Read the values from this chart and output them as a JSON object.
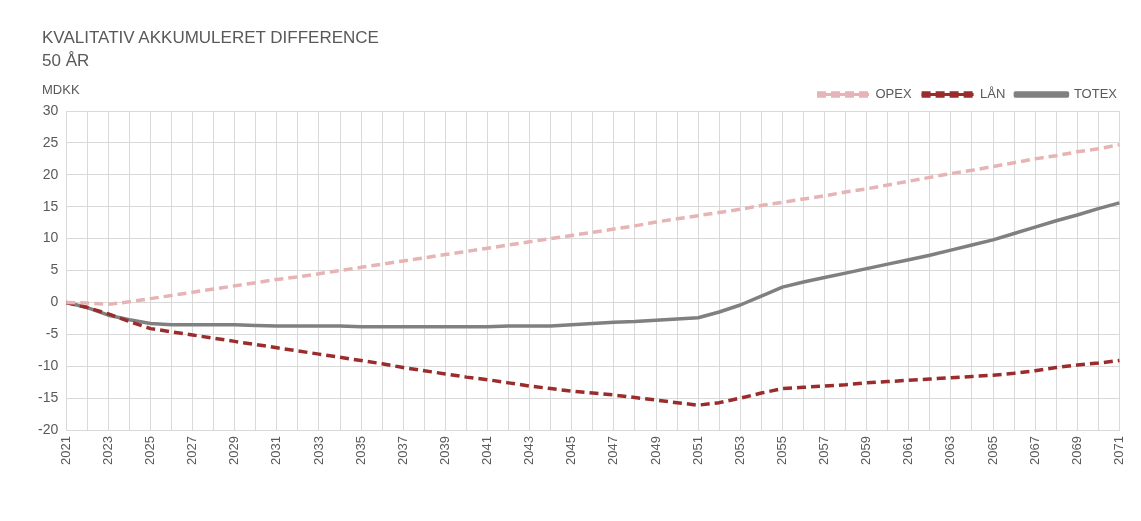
{
  "chart_data": {
    "type": "line",
    "title": "KVALITATIV AKKUMULERET DIFFERENCE",
    "subtitle": "50 ÅR",
    "ylabel": "MDKK",
    "categories": [
      "2021",
      null,
      "2023",
      null,
      "2025",
      null,
      "2027",
      null,
      "2029",
      null,
      "2031",
      null,
      "2033",
      null,
      "2035",
      null,
      "2037",
      null,
      "2039",
      null,
      "2041",
      null,
      "2043",
      null,
      "2045",
      null,
      "2047",
      null,
      "2049",
      null,
      "2051",
      null,
      "2053",
      null,
      "2055",
      null,
      "2057",
      null,
      "2059",
      null,
      "2061",
      null,
      "2063",
      null,
      "2065",
      null,
      "2067",
      null,
      "2069",
      null,
      "2071"
    ],
    "series": [
      {
        "name": "OPEX",
        "color": "#e6b4b4",
        "line_style": "dashed",
        "values": [
          0,
          -0.1,
          -0.3,
          0.1,
          0.6,
          1.1,
          1.6,
          2.1,
          2.6,
          3.1,
          3.6,
          4.0,
          4.5,
          5.0,
          5.5,
          6.0,
          6.5,
          7.0,
          7.5,
          8.0,
          8.5,
          9.0,
          9.5,
          10.0,
          10.5,
          11.0,
          11.5,
          12.0,
          12.6,
          13.1,
          13.6,
          14.1,
          14.6,
          15.2,
          15.7,
          16.2,
          16.7,
          17.3,
          17.8,
          18.4,
          19.0,
          19.6,
          20.2,
          20.7,
          21.3,
          21.9,
          22.5,
          23.0,
          23.6,
          24.1,
          24.7
        ]
      },
      {
        "name": "LÅN",
        "color": "#9b2c2c",
        "line_style": "dashed",
        "values": [
          0,
          -0.8,
          -1.8,
          -3.0,
          -4.1,
          -4.6,
          -5.1,
          -5.6,
          -6.1,
          -6.6,
          -7.1,
          -7.6,
          -8.1,
          -8.6,
          -9.1,
          -9.6,
          -10.2,
          -10.7,
          -11.2,
          -11.7,
          -12.1,
          -12.6,
          -13.1,
          -13.5,
          -13.9,
          -14.2,
          -14.5,
          -14.9,
          -15.3,
          -15.7,
          -16.1,
          -15.7,
          -15.0,
          -14.2,
          -13.5,
          -13.3,
          -13.1,
          -12.9,
          -12.6,
          -12.4,
          -12.2,
          -12.0,
          -11.8,
          -11.6,
          -11.4,
          -11.1,
          -10.7,
          -10.2,
          -9.8,
          -9.5,
          -9.1
        ]
      },
      {
        "name": "TOTEX",
        "color": "#808080",
        "line_style": "solid",
        "values": [
          0,
          -0.8,
          -2.0,
          -2.7,
          -3.3,
          -3.5,
          -3.5,
          -3.5,
          -3.5,
          -3.6,
          -3.7,
          -3.7,
          -3.7,
          -3.7,
          -3.8,
          -3.8,
          -3.8,
          -3.8,
          -3.8,
          -3.8,
          -3.8,
          -3.7,
          -3.7,
          -3.7,
          -3.5,
          -3.3,
          -3.1,
          -3.0,
          -2.8,
          -2.6,
          -2.4,
          -1.5,
          -0.4,
          1.0,
          2.4,
          3.2,
          3.9,
          4.6,
          5.3,
          6.0,
          6.7,
          7.4,
          8.2,
          9.0,
          9.8,
          10.8,
          11.8,
          12.8,
          13.7,
          14.7,
          15.6
        ]
      }
    ],
    "ylim": [
      -20,
      30
    ],
    "yticks": [
      -20,
      -15,
      -10,
      -5,
      0,
      5,
      10,
      15,
      20,
      25,
      30
    ],
    "grid": true,
    "legend": "top right",
    "marker": "none"
  }
}
